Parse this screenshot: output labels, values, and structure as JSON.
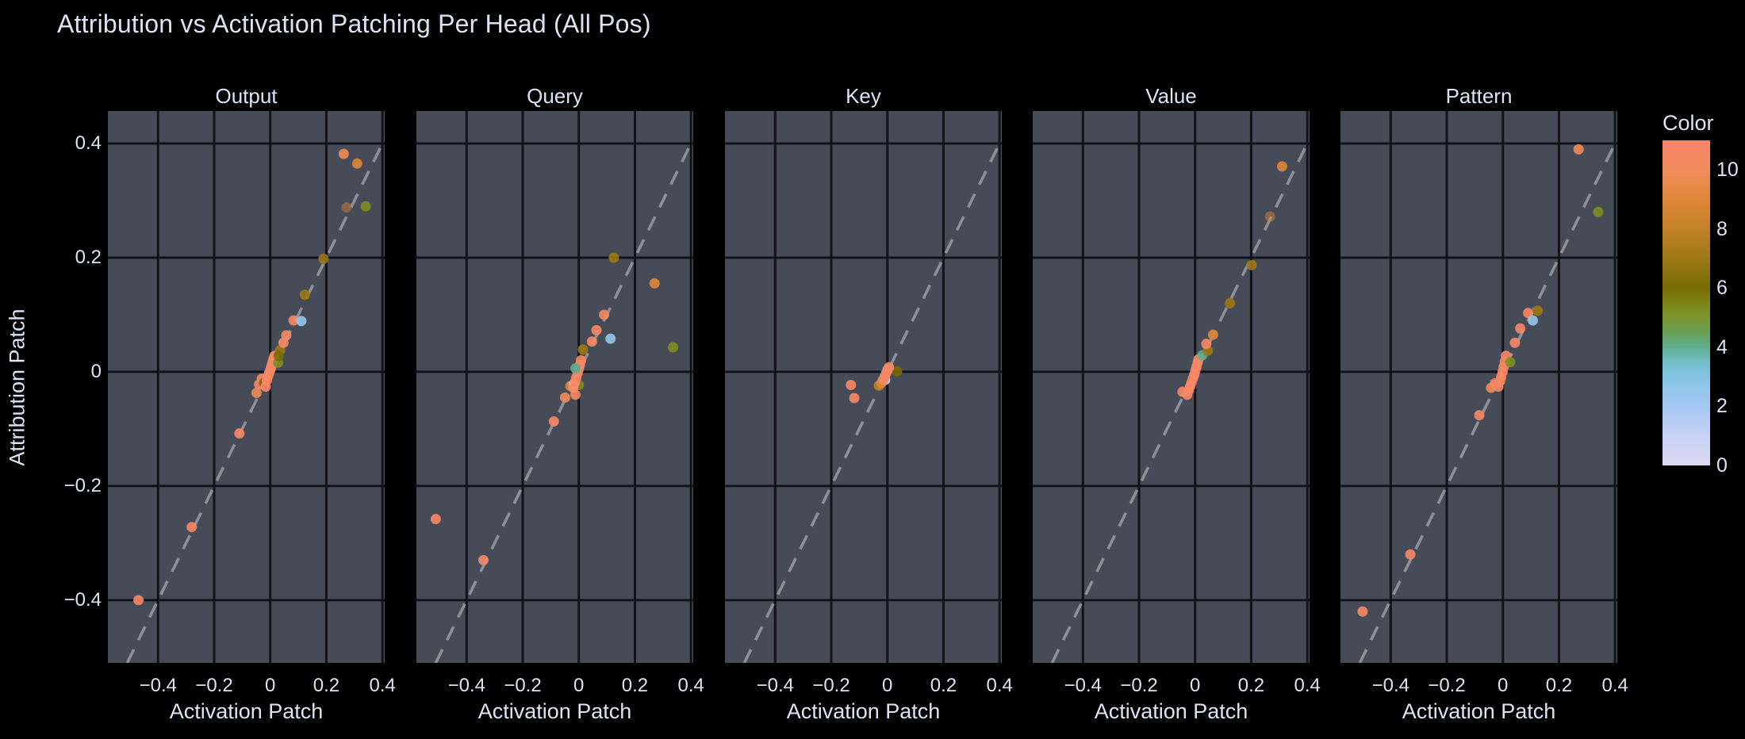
{
  "title": "Attribution vs Activation Patching Per Head (All Pos)",
  "colors": {
    "page_background": "#000000",
    "plot_background": "#454b57",
    "gridline": "#10131a",
    "font": "#dde3f5",
    "diagonal_line": "#94999f"
  },
  "chart_data": {
    "type": "scatter",
    "title": "Attribution vs Activation Patching Per Head (All Pos)",
    "xlabel": "Activation Patch",
    "ylabel": "Attribution Patch",
    "x_range": [
      -0.579,
      0.408
    ],
    "y_range": [
      -0.51,
      0.457
    ],
    "x_ticks": [
      -0.4,
      -0.2,
      0,
      0.2,
      0.4
    ],
    "y_ticks": [
      0.4,
      0.2,
      0,
      -0.2,
      -0.4
    ],
    "grid": true,
    "reference_line": "y = x dashed diagonal",
    "marker_diameter_px": 13,
    "marker_opacity": 0.9,
    "colorbar": {
      "title": "Color",
      "min": 0,
      "max": 11,
      "ticks": [
        0,
        2,
        4,
        6,
        8,
        10
      ],
      "colormap_stops": [
        [
          0.0,
          "#dcd9f1"
        ],
        [
          1.0,
          "#c8d2f6"
        ],
        [
          2.0,
          "#a6c8f4"
        ],
        [
          3.0,
          "#84c4e4"
        ],
        [
          3.5,
          "#72bec8"
        ],
        [
          4.0,
          "#5fad92"
        ],
        [
          4.5,
          "#699f55"
        ],
        [
          5.0,
          "#7d962f"
        ],
        [
          5.5,
          "#7d8413"
        ],
        [
          6.0,
          "#7a6c04"
        ],
        [
          7.0,
          "#9d7815"
        ],
        [
          8.0,
          "#c28127"
        ],
        [
          9.0,
          "#de8638"
        ],
        [
          10.0,
          "#f38c5c"
        ],
        [
          11.0,
          "#f9856b"
        ]
      ]
    },
    "subplots": [
      {
        "label": "Output",
        "points": [
          [
            -0.47,
            -0.4,
            10.6
          ],
          [
            -0.28,
            -0.272,
            10.6
          ],
          [
            -0.11,
            -0.108,
            10.6
          ],
          [
            -0.049,
            -0.037,
            9.8
          ],
          [
            -0.04,
            -0.022,
            10.6
          ],
          [
            -0.03,
            -0.012,
            10.6
          ],
          [
            -0.022,
            -0.019,
            6
          ],
          [
            -0.016,
            -0.026,
            10.6
          ],
          [
            -0.012,
            -0.015,
            10.6
          ],
          [
            -0.008,
            -0.008,
            10.6
          ],
          [
            -0.004,
            -0.002,
            10.6
          ],
          [
            0,
            0.003,
            10.6
          ],
          [
            0.003,
            0.008,
            10.6
          ],
          [
            0.006,
            0.013,
            10.6
          ],
          [
            0.009,
            0.018,
            10.6
          ],
          [
            0.012,
            0.023,
            10.6
          ],
          [
            0.015,
            0.028,
            10.6
          ],
          [
            0.028,
            0.016,
            5.2
          ],
          [
            0.035,
            0.038,
            7
          ],
          [
            0.03,
            0.028,
            6
          ],
          [
            0.047,
            0.051,
            10.6
          ],
          [
            0.057,
            0.064,
            10.6
          ],
          [
            0.083,
            0.09,
            10.6
          ],
          [
            0.111,
            0.089,
            2.6
          ],
          [
            0.123,
            0.135,
            7
          ],
          [
            0.19,
            0.198,
            7
          ],
          [
            0.272,
            0.288,
            9,
            0.45
          ],
          [
            0.262,
            0.382,
            9.8
          ],
          [
            0.31,
            0.365,
            9
          ],
          [
            0.34,
            0.29,
            5.2
          ]
        ]
      },
      {
        "label": "Query",
        "points": [
          [
            -0.51,
            -0.258,
            10.6
          ],
          [
            -0.34,
            -0.33,
            10.6
          ],
          [
            -0.089,
            -0.087,
            10.6
          ],
          [
            -0.049,
            -0.045,
            9.8
          ],
          [
            -0.03,
            -0.025,
            9
          ],
          [
            -0.012,
            -0.04,
            10.6
          ],
          [
            0.0,
            -0.023,
            5.2
          ],
          [
            -0.018,
            -0.022,
            0.4
          ],
          [
            -0.02,
            -0.028,
            10.6
          ],
          [
            -0.014,
            -0.018,
            10.6
          ],
          [
            -0.009,
            -0.01,
            10.6
          ],
          [
            -0.004,
            -0.002,
            10.6
          ],
          [
            0.0,
            0.005,
            10.6
          ],
          [
            0.004,
            0.012,
            10.6
          ],
          [
            0.008,
            0.02,
            10.6
          ],
          [
            -0.012,
            0.006,
            4.05
          ],
          [
            0.015,
            0.039,
            7
          ],
          [
            0.047,
            0.053,
            10.6
          ],
          [
            0.063,
            0.073,
            10.6
          ],
          [
            0.113,
            0.058,
            2.6
          ],
          [
            0.09,
            0.1,
            10.6
          ],
          [
            0.125,
            0.2,
            7
          ],
          [
            0.27,
            0.155,
            9
          ],
          [
            0.336,
            0.043,
            5.2
          ]
        ]
      },
      {
        "label": "Key",
        "points": [
          [
            -0.13,
            -0.023,
            10.6
          ],
          [
            -0.118,
            -0.046,
            10.6
          ],
          [
            -0.03,
            -0.024,
            8
          ],
          [
            0.035,
            0.001,
            6
          ],
          [
            0.001,
            0.004,
            2.6
          ],
          [
            -0.008,
            -0.014,
            0.4
          ],
          [
            -0.021,
            -0.019,
            9
          ],
          [
            -0.015,
            -0.014,
            10.6
          ],
          [
            -0.009,
            -0.008,
            10.6
          ],
          [
            -0.004,
            -0.002,
            10.6
          ],
          [
            0.001,
            0.003,
            10.6
          ],
          [
            0.006,
            0.008,
            10.6
          ]
        ]
      },
      {
        "label": "Value",
        "points": [
          [
            -0.045,
            -0.035,
            10.6
          ],
          [
            -0.028,
            -0.04,
            10.6
          ],
          [
            -0.023,
            -0.033,
            10.6
          ],
          [
            -0.018,
            -0.026,
            10.6
          ],
          [
            -0.013,
            -0.019,
            10.6
          ],
          [
            -0.008,
            -0.012,
            10.6
          ],
          [
            -0.003,
            -0.005,
            10.6
          ],
          [
            0.001,
            0.002,
            10.6
          ],
          [
            0.005,
            0.009,
            10.6
          ],
          [
            0.009,
            0.016,
            10.6
          ],
          [
            0.012,
            0.022,
            10.6
          ],
          [
            0.026,
            0.029,
            4.05
          ],
          [
            0.045,
            0.037,
            7
          ],
          [
            0.04,
            0.049,
            10.6
          ],
          [
            0.064,
            0.065,
            9
          ],
          [
            0.124,
            0.12,
            7
          ],
          [
            0.202,
            0.187,
            7
          ],
          [
            0.267,
            0.272,
            9,
            0.5
          ],
          [
            0.31,
            0.36,
            9
          ]
        ]
      },
      {
        "label": "Pattern",
        "points": [
          [
            -0.5,
            -0.42,
            10.6
          ],
          [
            -0.33,
            -0.32,
            10.6
          ],
          [
            -0.084,
            -0.076,
            10.6
          ],
          [
            -0.042,
            -0.028,
            9.8
          ],
          [
            -0.028,
            -0.02,
            10.6
          ],
          [
            -0.007,
            -0.015,
            6
          ],
          [
            -0.016,
            -0.026,
            10.6
          ],
          [
            -0.011,
            -0.017,
            10.6
          ],
          [
            -0.006,
            -0.009,
            10.6
          ],
          [
            -0.001,
            0.0,
            10.6
          ],
          [
            0.003,
            0.009,
            10.6
          ],
          [
            0.007,
            0.018,
            10.6
          ],
          [
            0.011,
            0.028,
            10.6
          ],
          [
            0.026,
            0.017,
            5.2
          ],
          [
            0.043,
            0.051,
            10.6
          ],
          [
            0.062,
            0.076,
            10.6
          ],
          [
            0.09,
            0.103,
            10.6
          ],
          [
            0.107,
            0.09,
            2.6
          ],
          [
            0.124,
            0.107,
            7
          ],
          [
            0.27,
            0.39,
            9.8
          ],
          [
            0.34,
            0.28,
            5.2
          ]
        ]
      }
    ]
  }
}
